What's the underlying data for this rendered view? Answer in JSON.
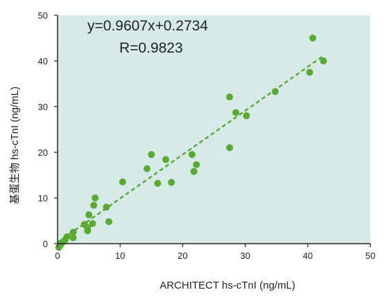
{
  "chart_data": {
    "type": "scatter",
    "xlabel": "ARCHITECT hs-cTnI (ng/mL)",
    "ylabel": "基蛋生物 hs-cTnI (ng/mL)",
    "xlim": [
      0,
      50
    ],
    "ylim": [
      0,
      50
    ],
    "xticks": [
      "0",
      "10",
      "20",
      "30",
      "40",
      "50"
    ],
    "yticks": [
      "0",
      "10",
      "20",
      "30",
      "40",
      "50"
    ],
    "grid": false,
    "annotations": {
      "equation": "y=0.9607x+0.2734",
      "r_value": "R=0.9823"
    },
    "colors": {
      "plot_background": "#d6ebe8",
      "points": "#5aaa32",
      "trendline": "#5aaa32",
      "axis": "#222222"
    },
    "trendline": {
      "slope": 0.9607,
      "intercept": 0.2734,
      "x_range": [
        0,
        42.5
      ],
      "style": "dashed"
    },
    "points": [
      {
        "x": 0.2,
        "y": -0.8
      },
      {
        "x": 0.5,
        "y": -0.2
      },
      {
        "x": 0.8,
        "y": 0.3
      },
      {
        "x": 1.2,
        "y": 0.8
      },
      {
        "x": 1.5,
        "y": 1.5
      },
      {
        "x": 2.5,
        "y": 1.3
      },
      {
        "x": 2.5,
        "y": 2.5
      },
      {
        "x": 4.3,
        "y": 4.2
      },
      {
        "x": 4.8,
        "y": 3.5
      },
      {
        "x": 4.8,
        "y": 2.8
      },
      {
        "x": 5.0,
        "y": 6.3
      },
      {
        "x": 5.6,
        "y": 4.4
      },
      {
        "x": 5.8,
        "y": 8.4
      },
      {
        "x": 6.0,
        "y": 10.0
      },
      {
        "x": 7.8,
        "y": 8.0
      },
      {
        "x": 8.2,
        "y": 4.8
      },
      {
        "x": 10.4,
        "y": 13.5
      },
      {
        "x": 14.3,
        "y": 16.4
      },
      {
        "x": 15.0,
        "y": 19.5
      },
      {
        "x": 16.0,
        "y": 13.2
      },
      {
        "x": 17.3,
        "y": 18.4
      },
      {
        "x": 18.2,
        "y": 13.4
      },
      {
        "x": 21.5,
        "y": 19.5
      },
      {
        "x": 21.8,
        "y": 15.8
      },
      {
        "x": 22.2,
        "y": 17.3
      },
      {
        "x": 27.5,
        "y": 21.0
      },
      {
        "x": 27.5,
        "y": 32.1
      },
      {
        "x": 28.5,
        "y": 28.7
      },
      {
        "x": 30.2,
        "y": 28.0
      },
      {
        "x": 34.8,
        "y": 33.3
      },
      {
        "x": 40.3,
        "y": 37.5
      },
      {
        "x": 40.8,
        "y": 45.0
      },
      {
        "x": 42.5,
        "y": 40.0
      }
    ]
  }
}
